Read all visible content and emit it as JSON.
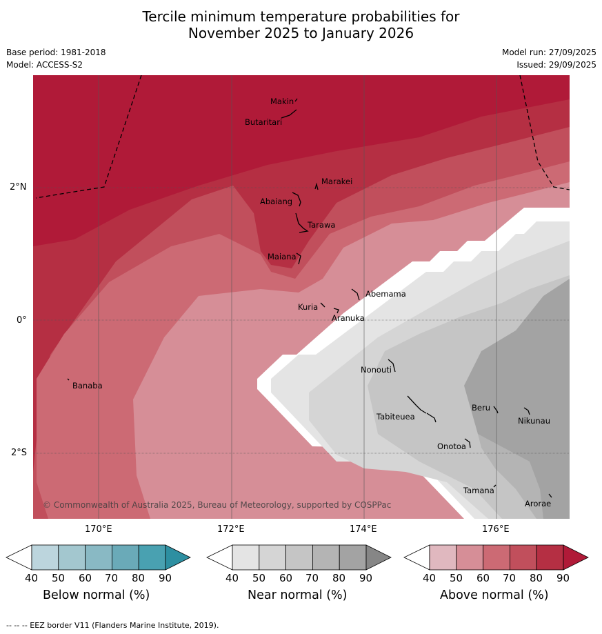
{
  "title": {
    "line1": "Tercile minimum temperature probabilities for",
    "line2": "November 2025 to January 2026"
  },
  "meta": {
    "base_period": "Base period: 1981-2018",
    "model": "Model: ACCESS-S2",
    "model_run": "Model run: 27/09/2025",
    "issued": "Issued: 29/09/2025"
  },
  "axes": {
    "lat_labels": [
      "2°N",
      "0°",
      "2°S"
    ],
    "lon_labels": [
      "170°E",
      "172°E",
      "174°E",
      "176°E"
    ]
  },
  "islands": [
    "Makin",
    "Butaritari",
    "Marakei",
    "Abaiang",
    "Tarawa",
    "Maiana",
    "Abemama",
    "Kuria",
    "Aranuka",
    "Banaba",
    "Nonouti",
    "Tabiteuea",
    "Beru",
    "Nikunau",
    "Onotoa",
    "Tamana",
    "Arorae"
  ],
  "copyright": "© Commonwealth of Australia 2025, Bureau of Meteorology, supported by COSPPac",
  "colorbars": [
    {
      "label": "Below normal (%)",
      "ticks": [
        "40",
        "50",
        "60",
        "70",
        "80",
        "90"
      ],
      "colors": [
        "#ffffff",
        "#bcd5dd",
        "#a3c7cf",
        "#89b9c4",
        "#6aaab8",
        "#49a1b1",
        "#2d8fa1"
      ]
    },
    {
      "label": "Near normal (%)",
      "ticks": [
        "40",
        "50",
        "60",
        "70",
        "80",
        "90"
      ],
      "colors": [
        "#ffffff",
        "#e4e4e4",
        "#d5d5d5",
        "#c5c5c5",
        "#b4b4b4",
        "#a3a3a3",
        "#868686"
      ]
    },
    {
      "label": "Above normal (%)",
      "ticks": [
        "40",
        "50",
        "60",
        "70",
        "80",
        "90"
      ],
      "colors": [
        "#ffffff",
        "#e0b8bf",
        "#d68e97",
        "#cc6a74",
        "#c14f5c",
        "#b52f43",
        "#b01a38"
      ]
    }
  ],
  "footer": "-- -- -- EEZ border V11 (Flanders Marine Institute, 2019)."
}
